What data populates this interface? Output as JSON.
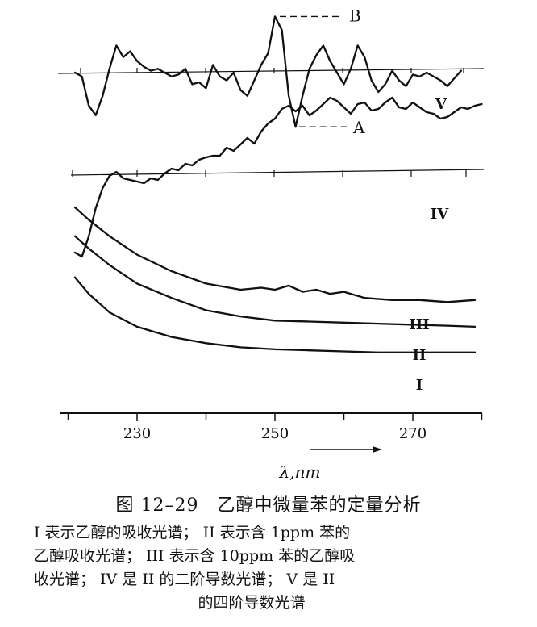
{
  "chart_data": {
    "type": "line",
    "x_axis": {
      "label": "λ,nm",
      "ticks": [
        230,
        250,
        270
      ],
      "range": [
        220,
        280
      ],
      "arrow": true
    },
    "series": [
      {
        "name": "I",
        "x": [
          221,
          223,
          226,
          230,
          235,
          240,
          245,
          250,
          255,
          260,
          265,
          270,
          275,
          279
        ],
        "y": [
          0.66,
          0.58,
          0.49,
          0.42,
          0.37,
          0.34,
          0.32,
          0.31,
          0.305,
          0.3,
          0.295,
          0.295,
          0.295,
          0.295
        ]
      },
      {
        "name": "II",
        "x": [
          221,
          223,
          226,
          230,
          235,
          240,
          245,
          250,
          255,
          260,
          265,
          270,
          275,
          279
        ],
        "y": [
          0.86,
          0.8,
          0.72,
          0.63,
          0.56,
          0.5,
          0.47,
          0.45,
          0.445,
          0.44,
          0.435,
          0.43,
          0.425,
          0.42
        ]
      },
      {
        "name": "III",
        "x": [
          221,
          223,
          226,
          230,
          235,
          240,
          245,
          248,
          250,
          252,
          254,
          256,
          258,
          260,
          263,
          267,
          271,
          275,
          279
        ],
        "y": [
          1.0,
          0.94,
          0.86,
          0.77,
          0.69,
          0.63,
          0.6,
          0.61,
          0.6,
          0.62,
          0.59,
          0.6,
          0.58,
          0.59,
          0.56,
          0.55,
          0.55,
          0.54,
          0.55
        ]
      },
      {
        "name": "IV",
        "x": [
          221,
          222,
          223,
          224,
          225,
          226,
          227,
          228,
          229,
          230,
          231,
          232,
          233,
          234,
          235,
          236,
          237,
          238,
          239,
          240,
          241,
          242,
          243,
          244,
          245,
          246,
          247,
          248,
          249,
          250,
          251,
          252,
          253,
          254,
          255,
          256,
          257,
          258,
          259,
          260,
          261,
          262,
          263,
          264,
          265,
          266,
          267,
          268,
          269,
          270,
          271,
          272,
          273,
          274,
          275,
          276,
          277,
          278,
          279,
          280
        ],
        "y": [
          -1.0,
          -1.05,
          -0.8,
          -0.45,
          -0.2,
          -0.05,
          0.0,
          -0.08,
          -0.1,
          -0.12,
          -0.14,
          -0.08,
          -0.1,
          -0.02,
          0.04,
          0.02,
          0.1,
          0.08,
          0.15,
          0.18,
          0.2,
          0.2,
          0.3,
          0.26,
          0.34,
          0.42,
          0.35,
          0.5,
          0.6,
          0.66,
          0.78,
          0.82,
          0.75,
          0.82,
          0.7,
          0.76,
          0.84,
          0.92,
          0.88,
          0.8,
          0.72,
          0.84,
          0.86,
          0.76,
          0.78,
          0.86,
          0.92,
          0.8,
          0.78,
          0.86,
          0.8,
          0.74,
          0.72,
          0.66,
          0.68,
          0.74,
          0.8,
          0.78,
          0.82,
          0.84
        ]
      },
      {
        "name": "V",
        "x": [
          221,
          222,
          223,
          224,
          225,
          226,
          227,
          228,
          229,
          230,
          231,
          232,
          233,
          234,
          235,
          236,
          237,
          238,
          239,
          240,
          241,
          242,
          243,
          244,
          245,
          246,
          247,
          248,
          249,
          250,
          251,
          252,
          253,
          254,
          255,
          256,
          257,
          258,
          259,
          260,
          261,
          262,
          263,
          264,
          265,
          266,
          267,
          268,
          269,
          270,
          271,
          272,
          273,
          274,
          275,
          276,
          277
        ],
        "y": [
          0.0,
          -0.1,
          -0.85,
          -1.1,
          -0.6,
          0.1,
          0.7,
          0.4,
          0.55,
          0.3,
          0.15,
          0.05,
          0.1,
          0.0,
          -0.1,
          -0.05,
          0.1,
          -0.3,
          -0.25,
          -0.4,
          0.2,
          -0.1,
          -0.2,
          0.0,
          -0.45,
          -0.6,
          -0.2,
          0.2,
          0.5,
          1.45,
          1.1,
          -0.6,
          -1.4,
          -0.6,
          0.1,
          0.45,
          0.7,
          0.3,
          0.0,
          -0.3,
          0.1,
          0.7,
          0.4,
          -0.2,
          -0.5,
          -0.3,
          0.05,
          -0.2,
          -0.35,
          -0.05,
          -0.1,
          0.0,
          -0.1,
          -0.2,
          -0.35,
          -0.15,
          0.05
        ]
      }
    ],
    "annotations": {
      "peak": "B",
      "trough": "A"
    }
  },
  "caption": {
    "title": "图 12–29　乙醇中微量苯的定量分析",
    "line1": "I 表示乙醇的吸收光谱； II 表示含 1ppm 苯的",
    "line2": "乙醇吸收光谱； III 表示含 10ppm 苯的乙醇吸",
    "line3": "收光谱； IV 是 II 的二阶导数光谱； V 是 II",
    "line4": "的四阶导数光谱"
  }
}
